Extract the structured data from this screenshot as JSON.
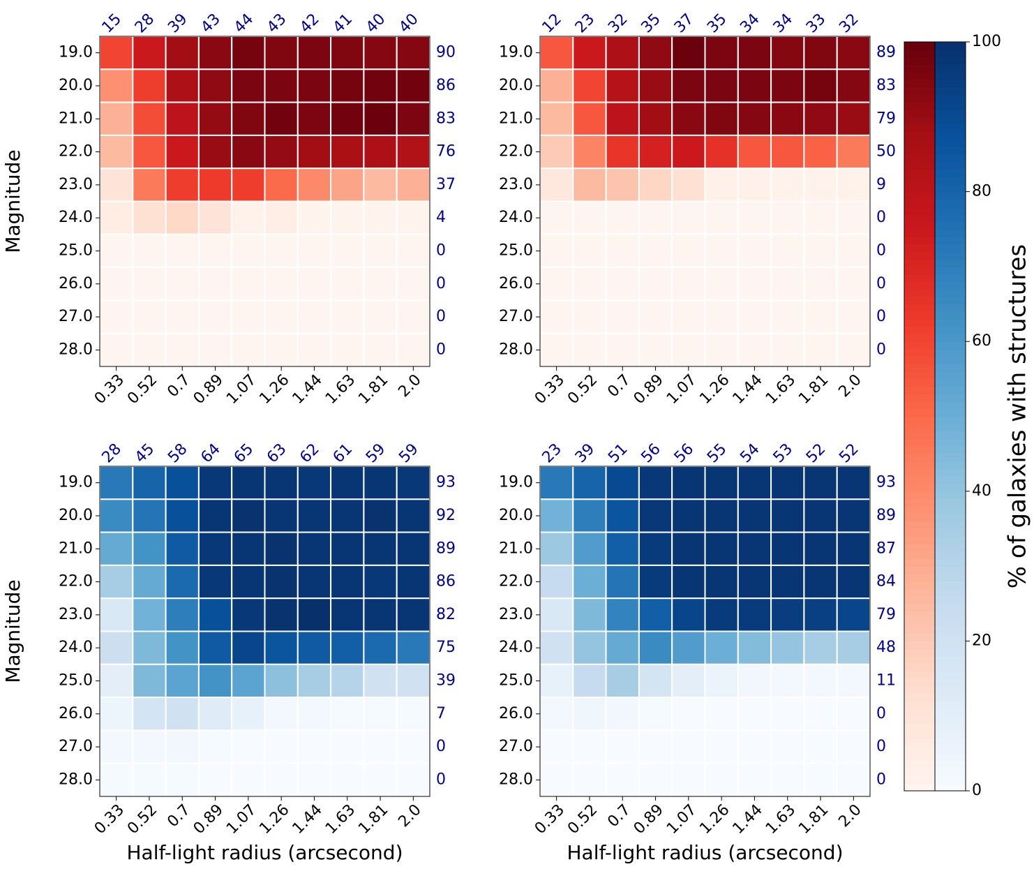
{
  "chart_data": [
    {
      "type": "heatmap",
      "colormap": "Reds",
      "ylabel": "Magnitude",
      "x": [
        "0.33",
        "0.52",
        "0.7",
        "0.89",
        "1.07",
        "1.26",
        "1.44",
        "1.63",
        "1.81",
        "2.0"
      ],
      "y": [
        "19.0",
        "20.0",
        "21.0",
        "22.0",
        "23.0",
        "24.0",
        "25.0",
        "26.0",
        "27.0",
        "28.0"
      ],
      "col_totals": [
        15,
        28,
        39,
        43,
        44,
        43,
        42,
        41,
        40,
        40
      ],
      "row_totals": [
        90,
        86,
        83,
        76,
        37,
        4,
        0,
        0,
        0,
        0
      ],
      "values": [
        [
          60,
          75,
          88,
          93,
          97,
          95,
          96,
          95,
          94,
          94
        ],
        [
          38,
          62,
          85,
          92,
          96,
          96,
          96,
          97,
          98,
          98
        ],
        [
          28,
          58,
          80,
          91,
          95,
          98,
          96,
          98,
          99,
          96
        ],
        [
          25,
          55,
          75,
          90,
          93,
          91,
          88,
          86,
          85,
          84
        ],
        [
          10,
          45,
          62,
          63,
          62,
          50,
          40,
          32,
          25,
          28
        ],
        [
          5,
          12,
          15,
          10,
          2,
          4,
          1,
          1,
          1,
          1
        ],
        [
          0,
          0,
          0,
          0,
          0,
          0,
          0,
          0,
          0,
          0
        ],
        [
          0,
          0,
          0,
          0,
          0,
          0,
          0,
          0,
          0,
          0
        ],
        [
          0,
          0,
          0,
          0,
          0,
          0,
          0,
          0,
          0,
          0
        ],
        [
          0,
          0,
          0,
          0,
          0,
          0,
          0,
          0,
          0,
          0
        ]
      ]
    },
    {
      "type": "heatmap",
      "colormap": "Reds",
      "x": [
        "0.33",
        "0.52",
        "0.7",
        "0.89",
        "1.07",
        "1.26",
        "1.44",
        "1.63",
        "1.81",
        "2.0"
      ],
      "y": [
        "19.0",
        "20.0",
        "21.0",
        "22.0",
        "23.0",
        "24.0",
        "25.0",
        "26.0",
        "27.0",
        "28.0"
      ],
      "col_totals": [
        12,
        23,
        32,
        35,
        37,
        35,
        34,
        34,
        33,
        32
      ],
      "row_totals": [
        89,
        83,
        79,
        50,
        9,
        0,
        0,
        0,
        0,
        0
      ],
      "values": [
        [
          55,
          75,
          85,
          92,
          99,
          96,
          96,
          94,
          95,
          93
        ],
        [
          28,
          60,
          82,
          90,
          96,
          96,
          96,
          96,
          97,
          94
        ],
        [
          25,
          55,
          80,
          88,
          93,
          95,
          94,
          93,
          92,
          90
        ],
        [
          20,
          42,
          65,
          72,
          75,
          66,
          55,
          55,
          52,
          45
        ],
        [
          8,
          25,
          22,
          16,
          12,
          3,
          3,
          2,
          2,
          2
        ],
        [
          0,
          0,
          0,
          0,
          0,
          0,
          0,
          0,
          0,
          0
        ],
        [
          0,
          0,
          0,
          0,
          0,
          0,
          0,
          0,
          0,
          0
        ],
        [
          0,
          0,
          0,
          0,
          0,
          0,
          0,
          0,
          0,
          0
        ],
        [
          0,
          0,
          0,
          0,
          0,
          0,
          0,
          0,
          0,
          0
        ],
        [
          0,
          0,
          0,
          0,
          0,
          0,
          0,
          0,
          0,
          0
        ]
      ]
    },
    {
      "type": "heatmap",
      "colormap": "Blues",
      "ylabel": "Magnitude",
      "xlabel": "Half-light radius (arcsecond)",
      "x": [
        "0.33",
        "0.52",
        "0.7",
        "0.89",
        "1.07",
        "1.26",
        "1.44",
        "1.63",
        "1.81",
        "2.0"
      ],
      "y": [
        "19.0",
        "20.0",
        "21.0",
        "22.0",
        "23.0",
        "24.0",
        "25.0",
        "26.0",
        "27.0",
        "28.0"
      ],
      "col_totals": [
        28,
        45,
        58,
        64,
        65,
        63,
        62,
        61,
        59,
        59
      ],
      "row_totals": [
        93,
        92,
        89,
        86,
        82,
        75,
        39,
        7,
        0,
        0
      ],
      "values": [
        [
          72,
          80,
          88,
          97,
          98,
          98,
          97,
          98,
          98,
          97
        ],
        [
          65,
          74,
          88,
          98,
          99,
          98,
          98,
          98,
          99,
          98
        ],
        [
          52,
          62,
          84,
          97,
          98,
          99,
          98,
          98,
          98,
          98
        ],
        [
          35,
          52,
          78,
          97,
          98,
          99,
          98,
          98,
          97,
          98
        ],
        [
          15,
          48,
          70,
          88,
          97,
          99,
          100,
          98,
          98,
          98
        ],
        [
          22,
          45,
          62,
          84,
          92,
          86,
          84,
          82,
          78,
          72
        ],
        [
          10,
          45,
          55,
          62,
          55,
          42,
          35,
          30,
          20,
          20
        ],
        [
          5,
          18,
          20,
          12,
          8,
          2,
          2,
          1,
          1,
          1
        ],
        [
          2,
          2,
          3,
          1,
          0,
          0,
          0,
          0,
          0,
          0
        ],
        [
          1,
          1,
          1,
          0,
          0,
          0,
          0,
          0,
          0,
          0
        ]
      ]
    },
    {
      "type": "heatmap",
      "colormap": "Blues",
      "xlabel": "Half-light radius (arcsecond)",
      "x": [
        "0.33",
        "0.52",
        "0.7",
        "0.89",
        "1.07",
        "1.26",
        "1.44",
        "1.63",
        "1.81",
        "2.0"
      ],
      "y": [
        "19.0",
        "20.0",
        "21.0",
        "22.0",
        "23.0",
        "24.0",
        "25.0",
        "26.0",
        "27.0",
        "28.0"
      ],
      "col_totals": [
        23,
        39,
        51,
        56,
        56,
        55,
        54,
        53,
        52,
        52
      ],
      "row_totals": [
        93,
        89,
        87,
        84,
        79,
        48,
        11,
        0,
        0,
        0
      ],
      "values": [
        [
          72,
          80,
          90,
          97,
          98,
          98,
          98,
          98,
          98,
          98
        ],
        [
          48,
          70,
          86,
          97,
          98,
          98,
          98,
          98,
          98,
          98
        ],
        [
          38,
          58,
          82,
          96,
          98,
          98,
          98,
          98,
          98,
          98
        ],
        [
          25,
          50,
          74,
          96,
          98,
          98,
          98,
          98,
          98,
          98
        ],
        [
          15,
          45,
          68,
          82,
          92,
          96,
          96,
          95,
          94,
          92
        ],
        [
          20,
          40,
          52,
          65,
          58,
          50,
          44,
          40,
          35,
          35
        ],
        [
          8,
          25,
          35,
          18,
          10,
          6,
          3,
          2,
          2,
          2
        ],
        [
          2,
          4,
          3,
          1,
          0,
          0,
          0,
          0,
          0,
          0
        ],
        [
          0,
          0,
          0,
          0,
          0,
          0,
          0,
          0,
          0,
          0
        ],
        [
          0,
          0,
          0,
          0,
          0,
          0,
          0,
          0,
          0,
          0
        ]
      ]
    },
    {
      "type": "colorbar",
      "colormaps": [
        "Reds",
        "Blues"
      ],
      "label": "% of galaxies with structures",
      "ylim": [
        0,
        100
      ],
      "yticks": [
        0,
        20,
        40,
        60,
        80,
        100
      ]
    }
  ]
}
